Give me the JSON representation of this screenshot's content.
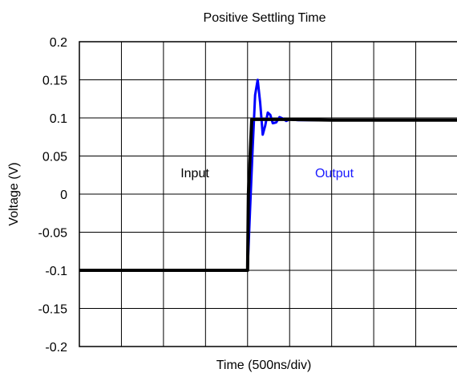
{
  "chart_data": {
    "type": "line",
    "title": "Positive Settling Time",
    "xlabel": "Time (500ns/div)",
    "ylabel": "Voltage (V)",
    "x_unit": "ns",
    "xlim": [
      0,
      4500
    ],
    "ylim": [
      -0.2,
      0.2
    ],
    "ytick_labels": [
      "0.2",
      "0.15",
      "0.1",
      "0.05",
      "0",
      "-0.05",
      "-0.1",
      "-0.15",
      "-0.2"
    ],
    "ytick_values": [
      0.2,
      0.15,
      0.1,
      0.05,
      0,
      -0.05,
      -0.1,
      -0.15,
      -0.2
    ],
    "xgrid_values": [
      0,
      500,
      1000,
      1500,
      2000,
      2500,
      3000,
      3500,
      4000,
      4500
    ],
    "grid": true,
    "legend": "none",
    "series": [
      {
        "name": "Input",
        "color": "#000000",
        "label_color": "#000000",
        "x": [
          0,
          500,
          1000,
          1500,
          1900,
          1950,
          2000,
          2010,
          2050,
          2100,
          2500,
          3000,
          3500,
          4000,
          4500
        ],
        "y": [
          -0.1,
          -0.1,
          -0.1,
          -0.1,
          -0.1,
          -0.1,
          -0.1,
          0.0,
          0.098,
          0.098,
          0.098,
          0.097,
          0.097,
          0.097,
          0.097
        ]
      },
      {
        "name": "Output",
        "color": "#0000ff",
        "label_color": "#1a1aff",
        "x": [
          0,
          500,
          1000,
          1500,
          1900,
          1950,
          2000,
          2030,
          2060,
          2090,
          2120,
          2150,
          2180,
          2210,
          2240,
          2270,
          2300,
          2340,
          2380,
          2420,
          2460,
          2500,
          2600,
          3000,
          3500,
          4000,
          4500
        ],
        "y": [
          -0.1,
          -0.1,
          -0.1,
          -0.1,
          -0.1,
          -0.1,
          -0.1,
          -0.02,
          0.06,
          0.13,
          0.15,
          0.12,
          0.078,
          0.09,
          0.107,
          0.104,
          0.093,
          0.094,
          0.101,
          0.099,
          0.096,
          0.098,
          0.097,
          0.097,
          0.097,
          0.097,
          0.097
        ]
      }
    ]
  }
}
